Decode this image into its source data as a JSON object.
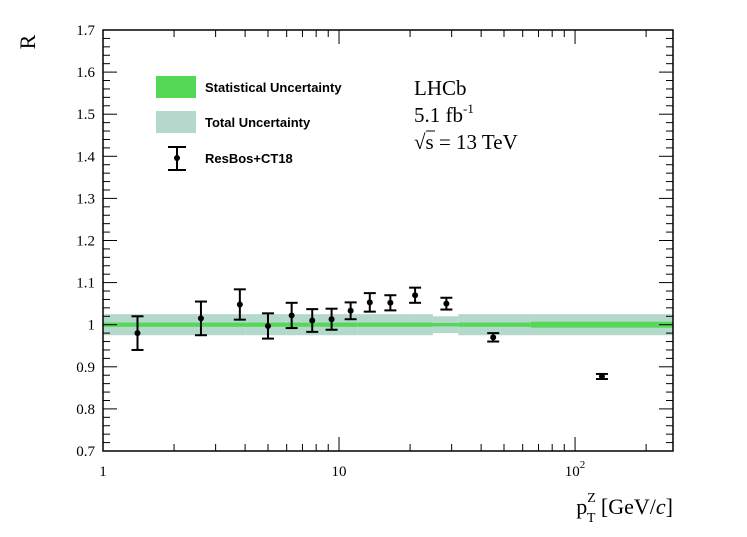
{
  "chart_data": {
    "type": "scatter",
    "xscale": "log",
    "xlim": [
      1,
      260
    ],
    "ylim": [
      0.7,
      1.7
    ],
    "ylabel": "R",
    "xlabel": {
      "base": "p",
      "superscript": "Z",
      "subscript": "T",
      "unit_open": " [GeV/",
      "unit_italic": "c",
      "unit_close": "]"
    },
    "yticks": [
      0.7,
      0.8,
      0.9,
      1.0,
      1.1,
      1.2,
      1.3,
      1.4,
      1.5,
      1.6,
      1.7
    ],
    "ytick_labels": [
      "0.7",
      "0.8",
      "0.9",
      "1",
      "1.1",
      "1.2",
      "1.3",
      "1.4",
      "1.5",
      "1.6",
      "1.7"
    ],
    "xticks_major": [
      {
        "value": 1,
        "base": "1",
        "exp": ""
      },
      {
        "value": 10,
        "base": "10",
        "exp": ""
      },
      {
        "value": 100,
        "base": "10",
        "exp": "2"
      }
    ],
    "legend": [
      {
        "label": "Statistical Uncertainty",
        "kind": "band",
        "color": "#55d855"
      },
      {
        "label": "Total Uncertainty",
        "kind": "band",
        "color": "#b5d8cc"
      },
      {
        "label": "ResBos+CT18",
        "kind": "marker",
        "color": "#000000"
      }
    ],
    "annotation": {
      "experiment": "LHCb",
      "lumi_value": "5.1 fb",
      "lumi_exp": "-1",
      "energy_root": "√",
      "energy_var": "s",
      "energy_rest": " = 13 TeV"
    },
    "bands": {
      "edges": [
        1,
        2,
        4,
        6,
        8,
        10,
        12,
        14,
        17,
        20,
        25,
        32,
        65,
        260
      ],
      "total": [
        [
          0.975,
          1.025
        ],
        [
          0.975,
          1.025
        ],
        [
          0.975,
          1.025
        ],
        [
          0.975,
          1.025
        ],
        [
          0.975,
          1.025
        ],
        [
          0.975,
          1.025
        ],
        [
          0.975,
          1.025
        ],
        [
          0.975,
          1.025
        ],
        [
          0.975,
          1.025
        ],
        [
          0.975,
          1.025
        ],
        [
          0.98,
          1.02
        ],
        [
          0.975,
          1.025
        ],
        [
          0.975,
          1.025
        ]
      ],
      "statistical": [
        [
          0.995,
          1.005
        ],
        [
          0.995,
          1.005
        ],
        [
          0.995,
          1.005
        ],
        [
          0.995,
          1.005
        ],
        [
          0.995,
          1.005
        ],
        [
          0.995,
          1.005
        ],
        [
          0.995,
          1.005
        ],
        [
          0.995,
          1.005
        ],
        [
          0.995,
          1.005
        ],
        [
          0.995,
          1.005
        ],
        [
          0.996,
          1.004
        ],
        [
          0.995,
          1.005
        ],
        [
          0.993,
          1.007
        ]
      ]
    },
    "series": [
      {
        "name": "ResBos+CT18",
        "points": [
          {
            "x": 1.4,
            "y": 0.98,
            "err": 0.04
          },
          {
            "x": 2.6,
            "y": 1.015,
            "err": 0.04
          },
          {
            "x": 3.8,
            "y": 1.048,
            "err": 0.036
          },
          {
            "x": 5.0,
            "y": 0.997,
            "err": 0.03
          },
          {
            "x": 6.3,
            "y": 1.022,
            "err": 0.03
          },
          {
            "x": 7.7,
            "y": 1.01,
            "err": 0.027
          },
          {
            "x": 9.3,
            "y": 1.013,
            "err": 0.025
          },
          {
            "x": 11.2,
            "y": 1.033,
            "err": 0.02
          },
          {
            "x": 13.5,
            "y": 1.053,
            "err": 0.022
          },
          {
            "x": 16.5,
            "y": 1.052,
            "err": 0.018
          },
          {
            "x": 21.0,
            "y": 1.07,
            "err": 0.018
          },
          {
            "x": 28.5,
            "y": 1.05,
            "err": 0.014
          },
          {
            "x": 45.0,
            "y": 0.97,
            "err": 0.01
          },
          {
            "x": 130.0,
            "y": 0.877,
            "err": 0.006
          }
        ]
      }
    ]
  }
}
